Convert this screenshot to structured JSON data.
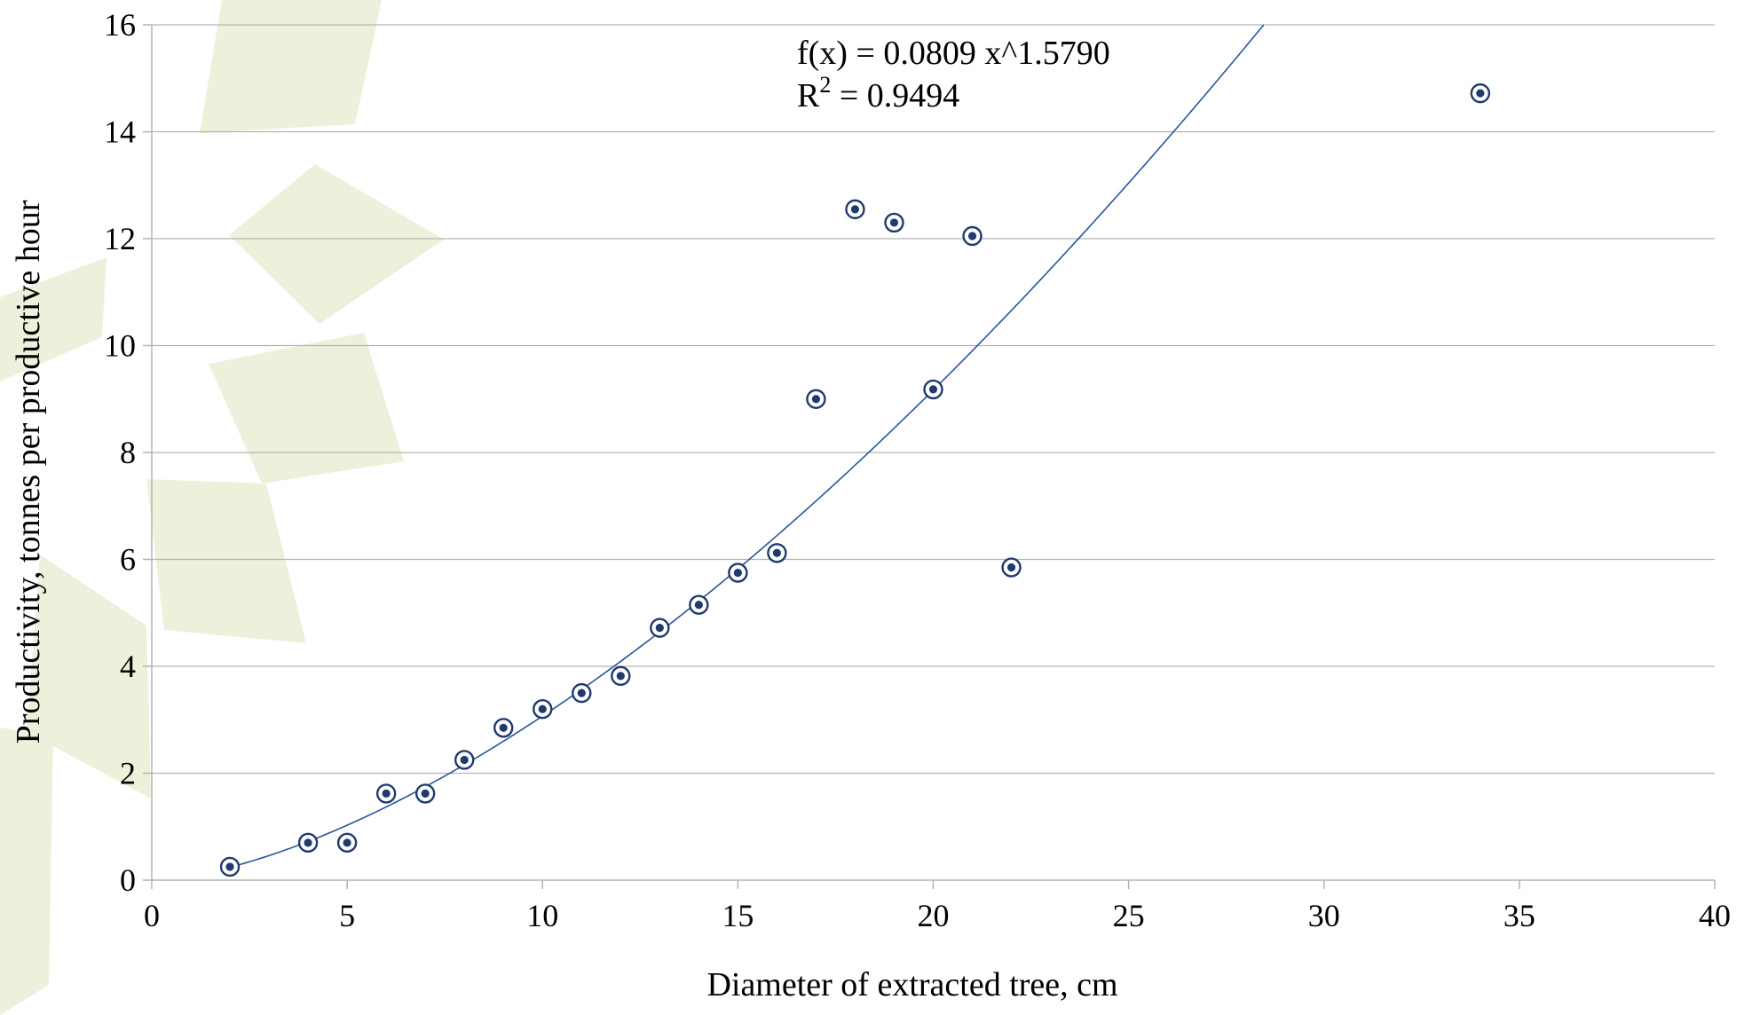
{
  "chart_data": {
    "type": "scatter",
    "xlabel": "Diameter of extracted tree, cm",
    "ylabel": "Productivity, tonnes per productive hour",
    "xlim": [
      0,
      40
    ],
    "ylim": [
      0,
      16
    ],
    "xticks": [
      0,
      5,
      10,
      15,
      20,
      25,
      30,
      35,
      40
    ],
    "yticks": [
      0,
      2,
      4,
      6,
      8,
      10,
      12,
      14,
      16
    ],
    "grid": "horizontal",
    "legend": "none",
    "colors": {
      "points": "#1f3a6e",
      "trendline": "#2a5699",
      "grid": "#b3b3b3"
    },
    "points": [
      {
        "x": 2,
        "y": 0.25
      },
      {
        "x": 4,
        "y": 0.7
      },
      {
        "x": 5,
        "y": 0.7
      },
      {
        "x": 6,
        "y": 1.62
      },
      {
        "x": 7,
        "y": 1.62
      },
      {
        "x": 8,
        "y": 2.25
      },
      {
        "x": 9,
        "y": 2.85
      },
      {
        "x": 10,
        "y": 3.2
      },
      {
        "x": 11,
        "y": 3.5
      },
      {
        "x": 12,
        "y": 3.82
      },
      {
        "x": 13,
        "y": 4.72
      },
      {
        "x": 14,
        "y": 5.15
      },
      {
        "x": 15,
        "y": 5.75
      },
      {
        "x": 16,
        "y": 6.12
      },
      {
        "x": 17,
        "y": 9.0
      },
      {
        "x": 18,
        "y": 12.55
      },
      {
        "x": 19,
        "y": 12.3
      },
      {
        "x": 20,
        "y": 9.18
      },
      {
        "x": 21,
        "y": 12.05
      },
      {
        "x": 22,
        "y": 5.85
      },
      {
        "x": 34,
        "y": 14.72
      }
    ],
    "trendline": {
      "type": "power",
      "a": 0.0809,
      "b": 1.579,
      "equation": "f(x) = 0.0809 x^1.5790",
      "r2_label": "R",
      "r2_sup": "2",
      "r2_value": " = 0.9494"
    }
  }
}
